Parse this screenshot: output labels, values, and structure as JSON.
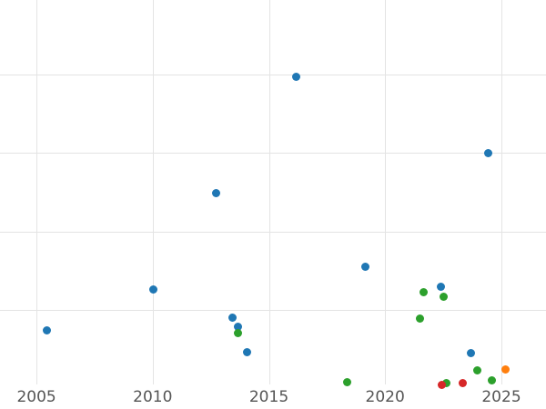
{
  "chart_data": {
    "type": "scatter",
    "title": "",
    "xlabel": "",
    "ylabel": "",
    "grid": true,
    "legend": "none",
    "background_color": "#ffffff",
    "gridline_color": "#e4e4e4",
    "tick_label_color": "#555555",
    "xlim": [
      2003.43,
      2026.92
    ],
    "ylim": [
      0.05,
      4.95
    ],
    "x_ticks": {
      "values": [
        2005,
        2010,
        2015,
        2020,
        2025
      ],
      "labels": [
        "2005",
        "2010",
        "2015",
        "2020",
        "2025"
      ]
    },
    "y_gridlines": [
      1,
      2,
      3,
      4
    ],
    "y_tick_labels_visible": false,
    "marker_size_px": 9,
    "series": [
      {
        "name": "blue-series",
        "color": "#1f77b4",
        "points": [
          [
            2005.43,
            0.74
          ],
          [
            2010.02,
            1.26
          ],
          [
            2012.71,
            2.49
          ],
          [
            2013.43,
            0.9
          ],
          [
            2013.68,
            0.79
          ],
          [
            2014.04,
            0.46
          ],
          [
            2016.19,
            3.97
          ],
          [
            2019.13,
            1.55
          ],
          [
            2022.4,
            1.3
          ],
          [
            2023.68,
            0.45
          ],
          [
            2024.42,
            3.0
          ]
        ]
      },
      {
        "name": "green-series",
        "color": "#2ca02c",
        "points": [
          [
            2013.65,
            0.7
          ],
          [
            2018.37,
            0.08
          ],
          [
            2021.48,
            0.89
          ],
          [
            2021.67,
            1.23
          ],
          [
            2022.53,
            1.17
          ],
          [
            2022.62,
            0.07
          ],
          [
            2023.98,
            0.23
          ],
          [
            2024.6,
            0.1
          ]
        ]
      },
      {
        "name": "red-series",
        "color": "#d62728",
        "points": [
          [
            2022.44,
            0.05
          ],
          [
            2023.33,
            0.07
          ]
        ]
      },
      {
        "name": "orange-series",
        "color": "#ff7f0e",
        "points": [
          [
            2025.18,
            0.24
          ]
        ]
      }
    ]
  }
}
